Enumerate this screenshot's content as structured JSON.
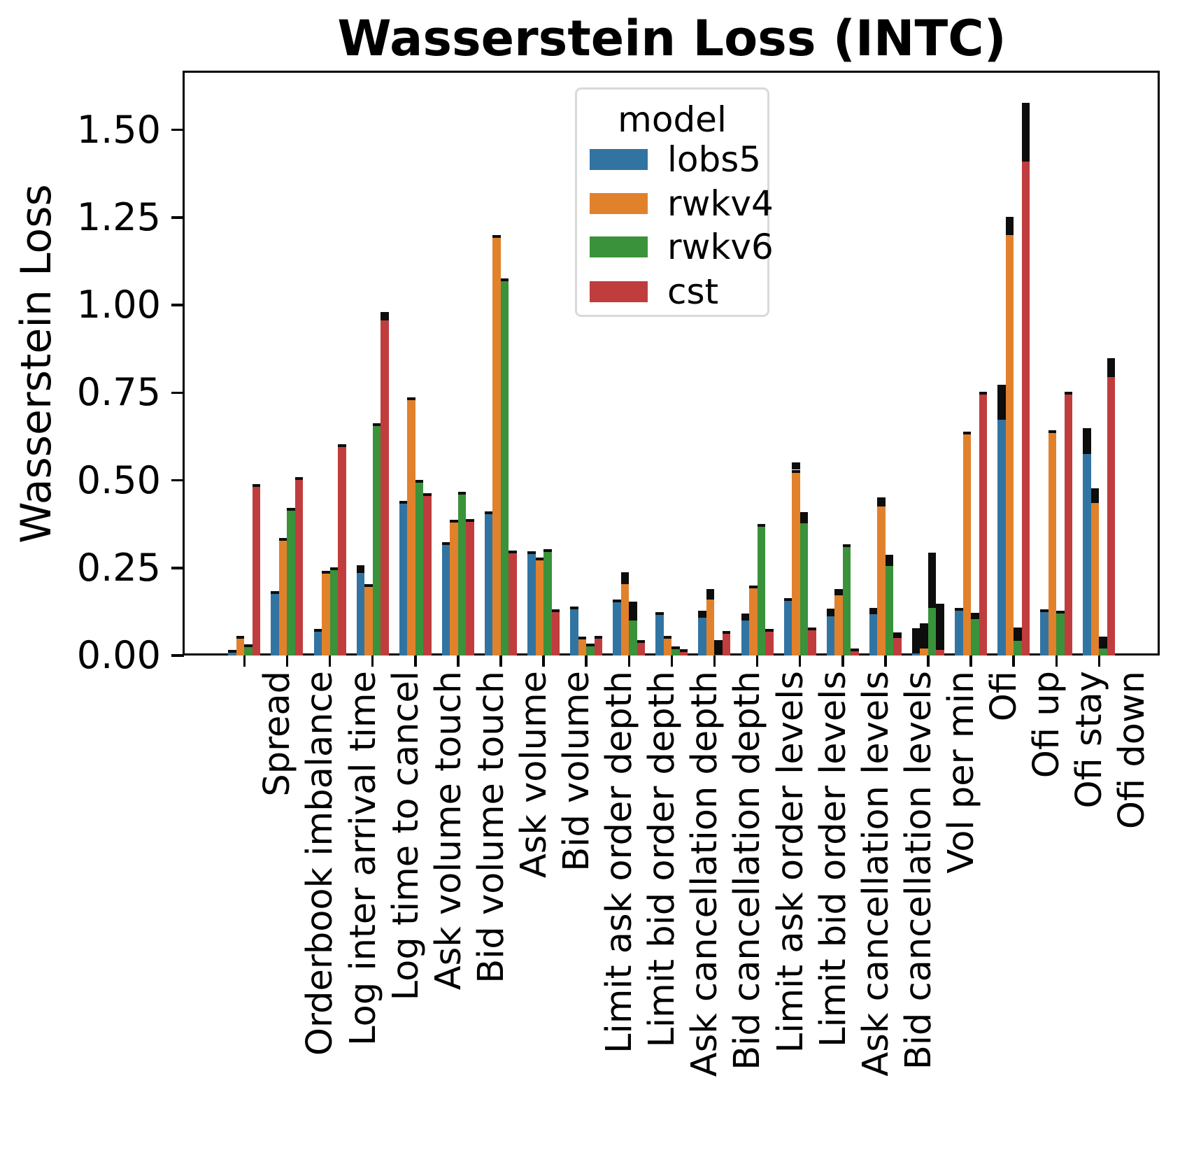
{
  "title": "Wasserstein Loss (INTC)",
  "y_axis": {
    "label": "Wasserstein Loss",
    "ticks": [
      "0.00",
      "0.25",
      "0.50",
      "0.75",
      "1.00",
      "1.25",
      "1.50"
    ],
    "tick_values": [
      0,
      0.25,
      0.5,
      0.75,
      1.0,
      1.25,
      1.5
    ]
  },
  "legend": {
    "title": "model",
    "entries": [
      {
        "label": "lobs5",
        "color": "#3274a1"
      },
      {
        "label": "rwkv4",
        "color": "#e1812c"
      },
      {
        "label": "rwkv6",
        "color": "#3a923a"
      },
      {
        "label": "cst",
        "color": "#c03d3e"
      }
    ]
  },
  "chart_data": {
    "type": "bar",
    "title": "Wasserstein Loss (INTC)",
    "xlabel": "",
    "ylabel": "Wasserstein Loss",
    "ylim": [
      0,
      1.665
    ],
    "grid": false,
    "legend_position": "upper center",
    "legend_title": "model",
    "error_bars": true,
    "categories": [
      "Spread",
      "Orderbook imbalance",
      "Log inter arrival time",
      "Log time to cancel",
      "Ask volume touch",
      "Bid volume touch",
      "Ask volume",
      "Bid volume",
      "Limit ask order depth",
      "Limit bid order depth",
      "Ask cancellation depth",
      "Bid cancellation depth",
      "Limit ask order levels",
      "Limit bid order levels",
      "Ask cancellation levels",
      "Bid cancellation levels",
      "Vol per min",
      "Ofi",
      "Ofi up",
      "Ofi stay",
      "Ofi down"
    ],
    "series": [
      {
        "name": "lobs5",
        "color": "#3274a1",
        "values": [
          0.017,
          0.184,
          0.076,
          0.243,
          0.442,
          0.323,
          0.411,
          0.297,
          0.14,
          0.16,
          0.124,
          0.115,
          0.107,
          0.164,
          0.12,
          0.125,
          0.014,
          0.135,
          0.68,
          0.132,
          0.583
        ],
        "err_top": [
          null,
          null,
          null,
          0.257,
          null,
          null,
          null,
          null,
          null,
          null,
          null,
          0.127,
          0.119,
          null,
          0.133,
          0.136,
          0.078,
          null,
          0.772,
          null,
          0.649
        ]
      },
      {
        "name": "rwkv4",
        "color": "#e1812c",
        "values": [
          0.055,
          0.336,
          0.242,
          0.204,
          0.737,
          0.387,
          1.2,
          0.28,
          0.053,
          0.212,
          0.056,
          0.167,
          0.199,
          0.53,
          0.18,
          0.433,
          0.028,
          0.639,
          1.208,
          0.643,
          0.443
        ],
        "err_top": [
          null,
          null,
          null,
          null,
          null,
          null,
          null,
          null,
          null,
          0.237,
          null,
          0.19,
          null,
          0.551,
          0.189,
          0.451,
          0.091,
          null,
          1.251,
          null,
          0.477
        ]
      },
      {
        "name": "rwkv6",
        "color": "#3a923a",
        "values": [
          0.032,
          0.421,
          0.252,
          0.663,
          0.501,
          0.468,
          1.075,
          0.303,
          0.035,
          0.107,
          0.027,
          0.01,
          0.375,
          0.385,
          0.317,
          0.263,
          0.144,
          0.112,
          0.05,
          0.128,
          0.028
        ],
        "err_top": [
          null,
          null,
          null,
          null,
          null,
          null,
          null,
          null,
          null,
          0.154,
          null,
          0.044,
          null,
          0.409,
          null,
          0.287,
          0.293,
          0.122,
          0.079,
          null,
          0.054
        ]
      },
      {
        "name": "cst",
        "color": "#c03d3e",
        "values": [
          0.49,
          0.51,
          0.603,
          0.965,
          0.463,
          0.39,
          0.3,
          0.132,
          0.056,
          0.044,
          0.019,
          0.07,
          0.075,
          0.08,
          0.021,
          0.057,
          0.024,
          0.752,
          1.418,
          0.752,
          0.802
        ],
        "err_top": [
          null,
          null,
          null,
          0.98,
          null,
          null,
          null,
          null,
          null,
          null,
          null,
          null,
          null,
          null,
          null,
          0.065,
          0.148,
          null,
          1.577,
          null,
          0.849
        ]
      }
    ]
  }
}
